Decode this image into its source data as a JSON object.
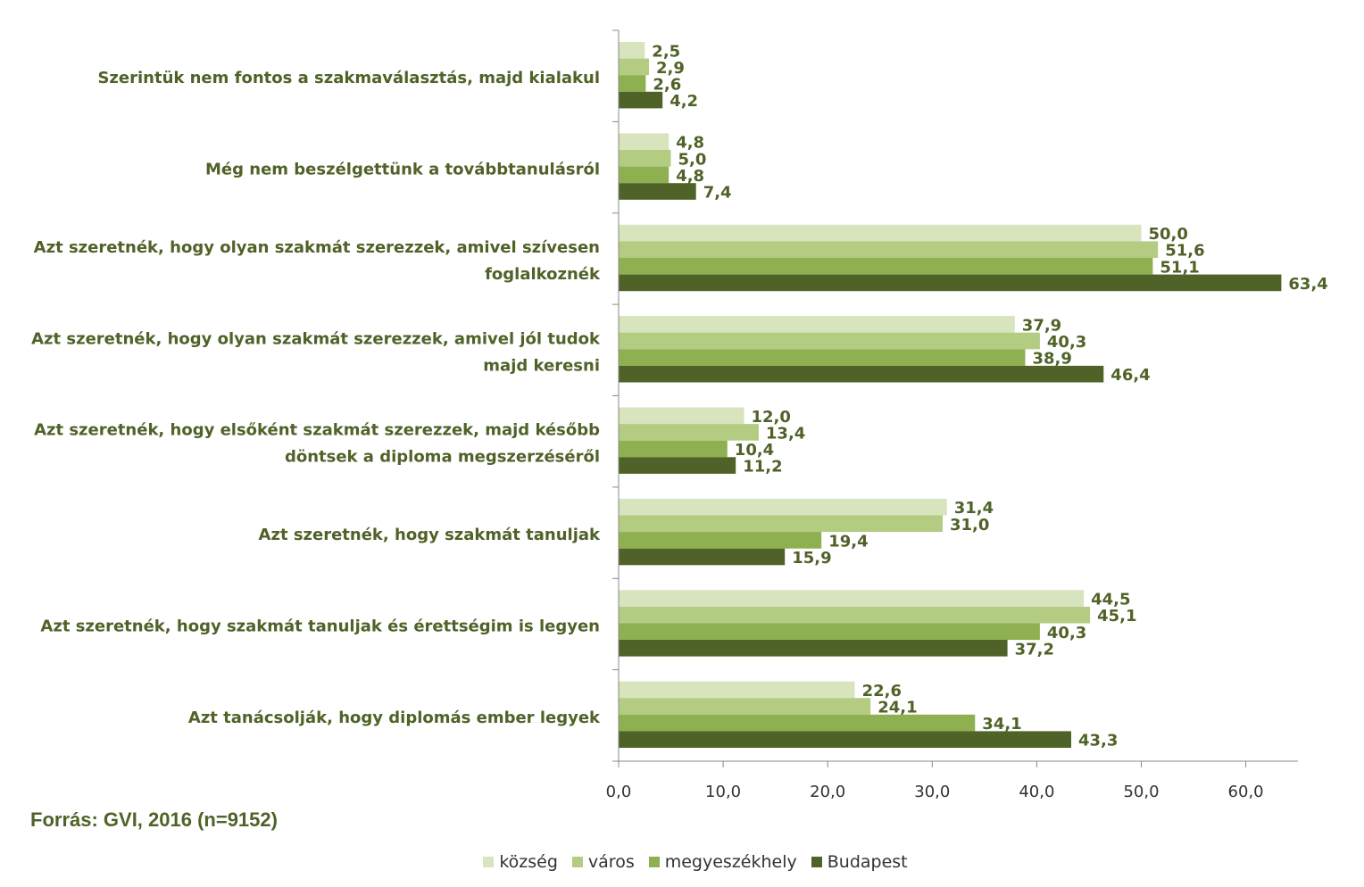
{
  "chart_data": {
    "type": "bar",
    "orientation": "horizontal",
    "categories": [
      [
        "Szerintük nem fontos a szakmaválasztás, majd kialakul"
      ],
      [
        "Még nem beszélgettünk a továbbtanulásról"
      ],
      [
        "Azt szeretnék, hogy olyan szakmát szerezzek, amivel szívesen",
        "foglalkoznék"
      ],
      [
        "Azt szeretnék, hogy olyan szakmát szerezzek, amivel jól tudok",
        "majd keresni"
      ],
      [
        "Azt szeretnék, hogy elsőként szakmát szerezzek, majd később",
        "döntsek a diploma megszerzéséről"
      ],
      [
        "Azt szeretnék, hogy szakmát tanuljak"
      ],
      [
        "Azt szeretnék, hogy szakmát tanuljak és érettségim is legyen"
      ],
      [
        "Azt tanácsolják, hogy diplomás ember legyek"
      ]
    ],
    "series": [
      {
        "name": "község",
        "color": "#d7e4bd",
        "values": [
          2.5,
          4.8,
          50.0,
          37.9,
          12.0,
          31.4,
          44.5,
          22.6
        ],
        "labels": [
          "2,5",
          "4,8",
          "50,0",
          "37,9",
          "12,0",
          "31,4",
          "44,5",
          "22,6"
        ]
      },
      {
        "name": "város",
        "color": "#b3cc82",
        "values": [
          2.9,
          5.0,
          51.6,
          40.3,
          13.4,
          31.0,
          45.1,
          24.1
        ],
        "labels": [
          "2,9",
          "5,0",
          "51,6",
          "40,3",
          "13,4",
          "31,0",
          "45,1",
          "24,1"
        ]
      },
      {
        "name": "megyeszékhely",
        "color": "#8fb050",
        "values": [
          2.6,
          4.8,
          51.1,
          38.9,
          10.4,
          19.4,
          40.3,
          34.1
        ],
        "labels": [
          "2,6",
          "4,8",
          "51,1",
          "38,9",
          "10,4",
          "19,4",
          "40,3",
          "34,1"
        ]
      },
      {
        "name": "Budapest",
        "color": "#4f6228",
        "values": [
          4.2,
          7.4,
          63.4,
          46.4,
          11.2,
          15.9,
          37.2,
          43.3
        ],
        "labels": [
          "4,2",
          "7,4",
          "63,4",
          "46,4",
          "11,2",
          "15,9",
          "37,2",
          "43,3"
        ]
      }
    ],
    "xticks": [
      "0,0",
      "10,0",
      "20,0",
      "30,0",
      "40,0",
      "50,0",
      "60,0"
    ],
    "xlim": [
      0,
      65
    ],
    "grid": false,
    "legend_position": "bottom",
    "title": "",
    "xlabel": "",
    "ylabel": ""
  },
  "source_note": "Forrás: GVI, 2016 (n=9152)"
}
